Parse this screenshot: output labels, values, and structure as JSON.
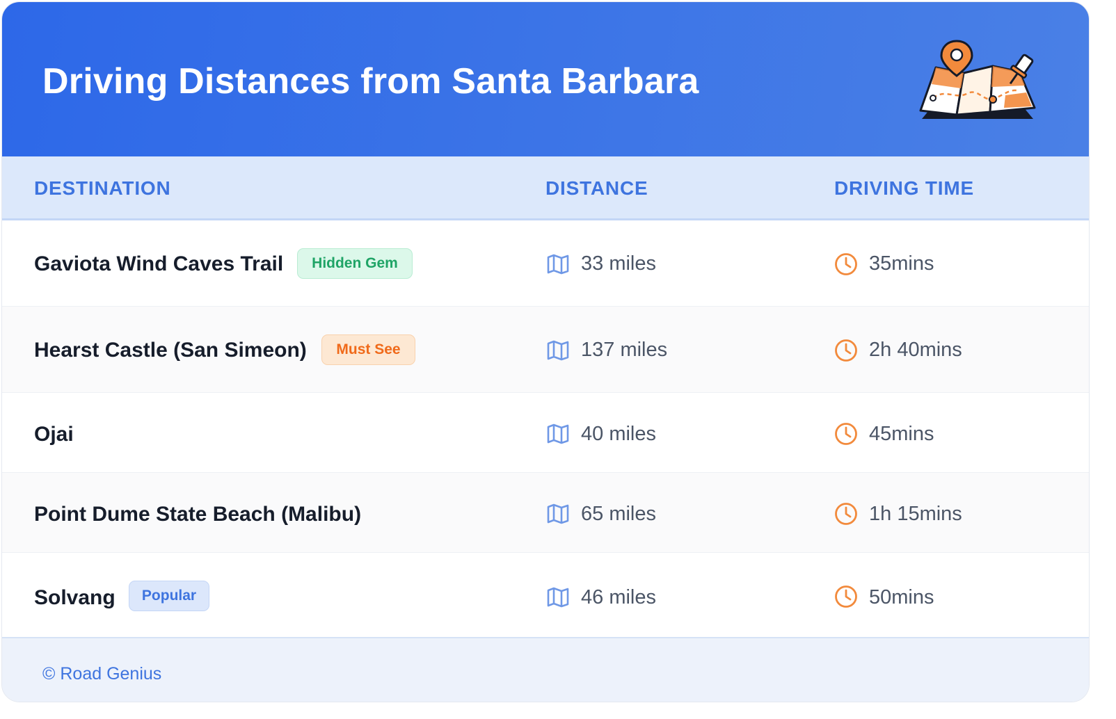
{
  "header": {
    "title": "Driving Distances from Santa Barbara",
    "illustration_icon": "folded-map-with-pins-icon"
  },
  "table": {
    "columns": [
      "DESTINATION",
      "DISTANCE",
      "DRIVING TIME"
    ],
    "rows": [
      {
        "destination": "Gaviota Wind Caves Trail",
        "badge": "Hidden Gem",
        "badge_style": "green",
        "distance": "33 miles",
        "time": "35mins"
      },
      {
        "destination": "Hearst Castle (San Simeon)",
        "badge": "Must See",
        "badge_style": "orange",
        "distance": "137 miles",
        "time": "2h 40mins"
      },
      {
        "destination": "Ojai",
        "badge": "",
        "badge_style": "",
        "distance": "40 miles",
        "time": "45mins"
      },
      {
        "destination": "Point Dume State Beach (Malibu)",
        "badge": "",
        "badge_style": "",
        "distance": "65 miles",
        "time": "1h 15mins"
      },
      {
        "destination": "Solvang",
        "badge": "Popular",
        "badge_style": "blue",
        "distance": "46 miles",
        "time": "50mins"
      }
    ],
    "distance_icon": "map-icon",
    "time_icon": "clock-icon"
  },
  "footer": {
    "credit": "© Road Genius"
  },
  "colors": {
    "header_gradient_start": "#2d68e8",
    "header_gradient_end": "#4a80e6",
    "accent_blue": "#3e74df",
    "clock_orange": "#f28a3c",
    "badge_green": "#1fa466",
    "badge_orange": "#f06a1a"
  }
}
